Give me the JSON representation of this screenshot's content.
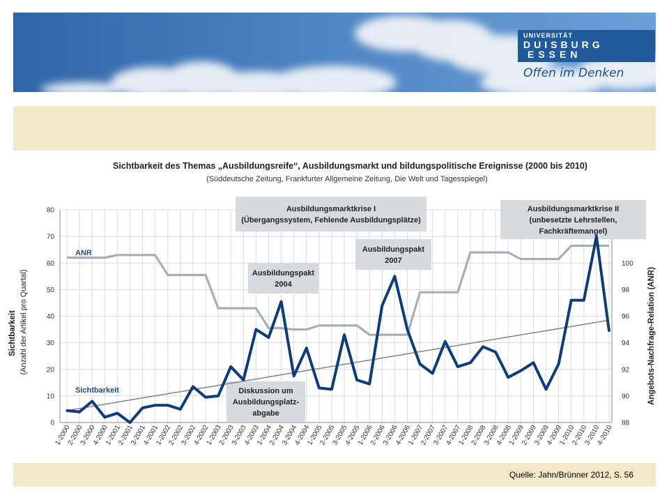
{
  "header": {
    "logo_line1": "UNIVERSITÄT",
    "logo_line2": "DUISBURG",
    "logo_line3": "ESSEN",
    "tagline": "Offen im Denken"
  },
  "source": "Quelle: Jahn/Brünner 2012, S. 56",
  "colors": {
    "visibility": "#0d3c78",
    "anr": "#a9adb7",
    "trend": "#8a8a8a",
    "annotation_bg": "#d9dade",
    "band": "#f3e9c8"
  },
  "chart_data": {
    "type": "line",
    "title": "Sichtbarkeit des Themas „Ausbildungsreife“, Ausbildungsmarkt und bildungspolitische Ereignisse (2000 bis 2010)",
    "subtitle": "(Süddeutsche Zeitung, Frankfurter Allgemeine Zeitung, Die Welt und Tagesspiegel)",
    "ylabel": "Sichtbarkeit",
    "ylabel_sub": "(Anzahl der Artikel pro Quartal)",
    "y2label": "Angebots-Nachfrage-Relation (ANR)",
    "ylim": [
      0,
      80
    ],
    "yticks": [
      0,
      10,
      20,
      30,
      40,
      50,
      60,
      70,
      80
    ],
    "y2lim": [
      88,
      104
    ],
    "y2ticks": [
      88,
      90,
      92,
      94,
      96,
      98,
      100
    ],
    "categories": [
      "1-2000",
      "2-2000",
      "3-2000",
      "4-2000",
      "1-2001",
      "2-2001",
      "3-2001",
      "4-2001",
      "1-2002",
      "2-2002",
      "3-2002",
      "4-2002",
      "1-2003",
      "2-2003",
      "3-2003",
      "4-2003",
      "1-2004",
      "2-2004",
      "3-2004",
      "4-2004",
      "1-2005",
      "2-2005",
      "3-2005",
      "4-2005",
      "1-2006",
      "2-2006",
      "3-2006",
      "4-2006",
      "1-2007",
      "2-2007",
      "3-2007",
      "4-2007",
      "1-2008",
      "2-2008",
      "3-2008",
      "4-2008",
      "1-2009",
      "2-2009",
      "3-2009",
      "4-2009",
      "1-2010",
      "2-2010",
      "3-2010",
      "4-2010"
    ],
    "series": [
      {
        "name": "Sichtbarkeit",
        "axis": "left",
        "values": [
          4.5,
          4,
          8,
          2,
          3.5,
          0,
          5.5,
          6.5,
          6.5,
          5,
          13.5,
          9.5,
          10,
          21,
          16,
          35,
          32,
          45.5,
          17.5,
          28,
          13,
          12.5,
          33,
          16,
          14.5,
          44,
          55,
          35,
          22,
          18.5,
          30.5,
          21,
          22.5,
          28.5,
          26.5,
          17,
          19.5,
          22.5,
          12.5,
          22,
          46,
          46,
          70,
          34.5
        ]
      },
      {
        "name": "ANR",
        "axis": "right",
        "values": [
          100.4,
          100.4,
          100.4,
          100.4,
          100.6,
          100.6,
          100.6,
          100.6,
          99.1,
          99.1,
          99.1,
          99.1,
          96.6,
          96.6,
          96.6,
          96.6,
          95.1,
          95.1,
          95.0,
          95.0,
          95.3,
          95.3,
          95.3,
          95.3,
          94.6,
          94.6,
          94.6,
          94.6,
          97.8,
          97.8,
          97.8,
          97.8,
          100.8,
          100.8,
          100.8,
          100.8,
          100.3,
          100.3,
          100.3,
          100.3,
          101.3,
          101.3,
          101.3,
          101.3
        ]
      }
    ],
    "trendline": {
      "start": 4.5,
      "end": 38.5
    },
    "series_labels": {
      "anr": "ANR",
      "visibility": "Sichtbarkeit"
    },
    "annotations": [
      {
        "lines": [
          "Ausbildungsmarktkrise I",
          "(Übergangssystem, Fehlende Ausbildungsplätze)"
        ]
      },
      {
        "lines": [
          "Ausbildungspakt",
          "2004"
        ]
      },
      {
        "lines": [
          "Ausbildungspakt",
          "2007"
        ]
      },
      {
        "lines": [
          "Ausbildungsmarktkrise II",
          "(unbesetzte Lehrstellen,",
          "Fachkräftemangel)"
        ]
      },
      {
        "lines": [
          "Diskussion um",
          "Ausbildungsplatz-",
          "abgabe"
        ]
      }
    ],
    "grid": true
  }
}
